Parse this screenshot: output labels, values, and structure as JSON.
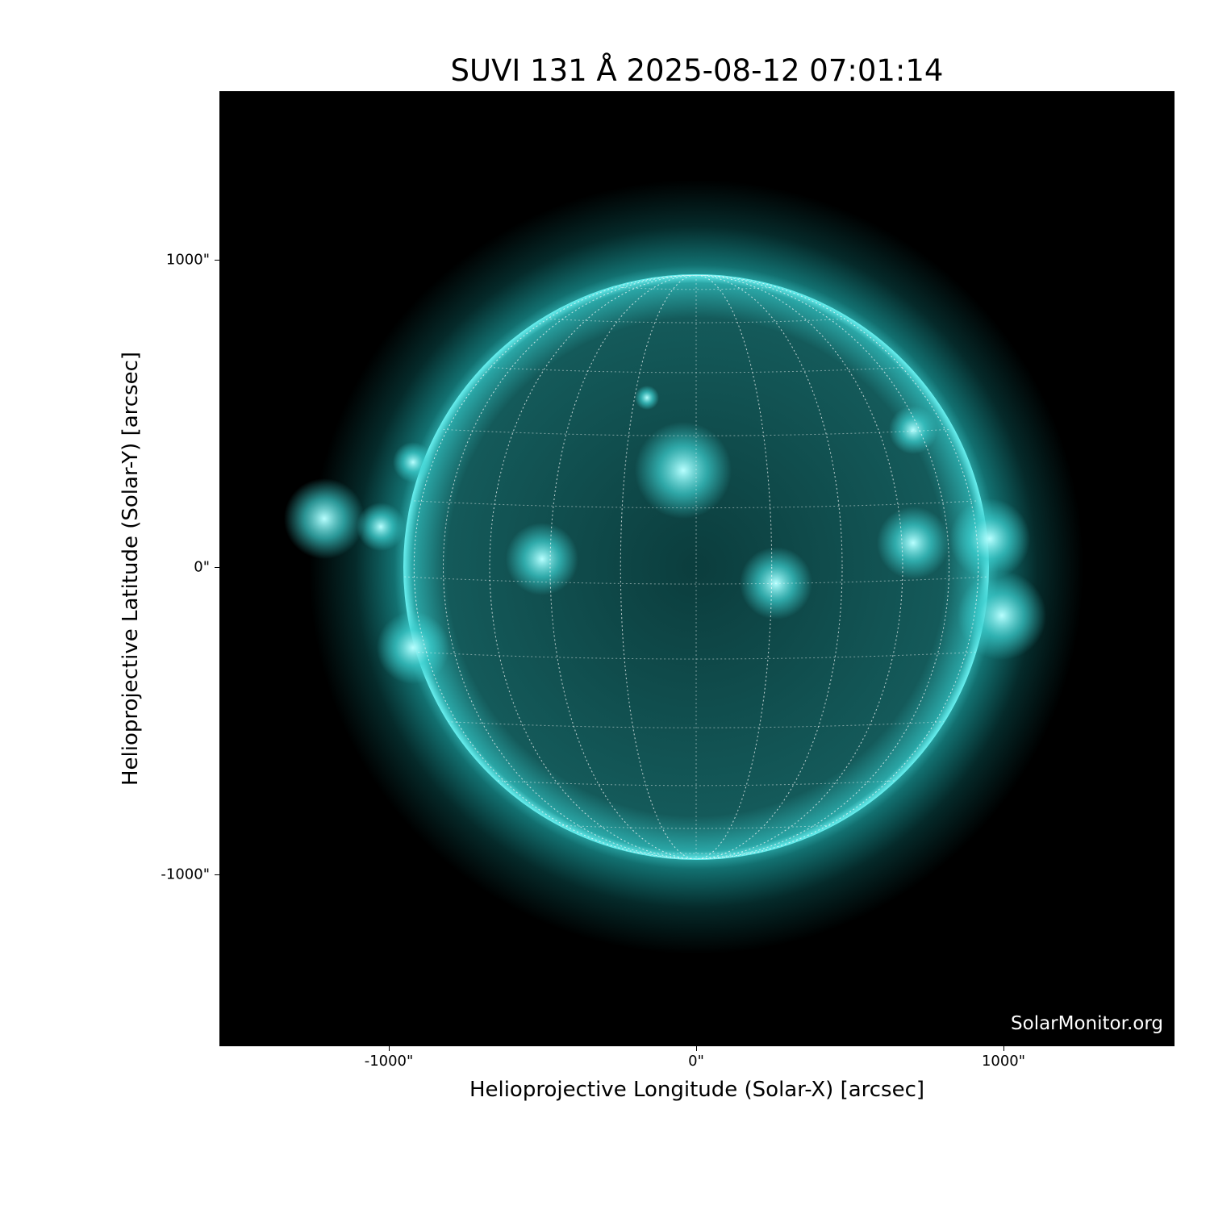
{
  "title": "SUVI 131 Å 2025-08-12 07:01:14",
  "x_axis": {
    "label": "Helioprojective Longitude (Solar-X) [arcsec]",
    "ticks": [
      "-1000\"",
      "0\"",
      "1000\""
    ],
    "tick_values": [
      -1000,
      0,
      1000
    ]
  },
  "y_axis": {
    "label": "Helioprojective Latitude (Solar-Y) [arcsec]",
    "ticks": [
      "1000\"",
      "0\"",
      "-1000\""
    ],
    "tick_values": [
      1000,
      0,
      -1000
    ]
  },
  "watermark": "SolarMonitor.org",
  "colors": {
    "disk": "#0a4a4a",
    "limb": "#40e0e0",
    "background": "#000000",
    "grid": "#ffffff"
  }
}
